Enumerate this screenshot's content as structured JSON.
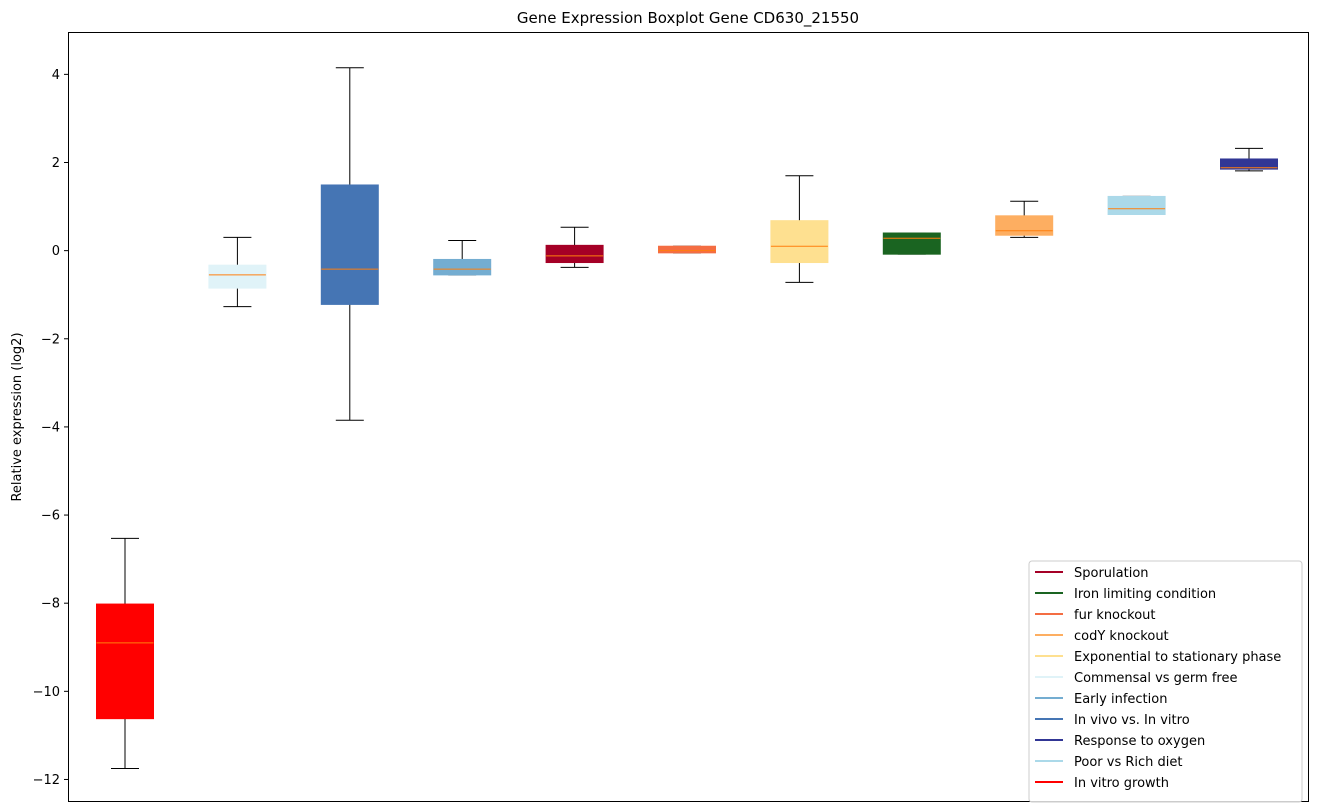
{
  "chart_data": {
    "type": "boxplot",
    "title": "Gene Expression Boxplot Gene CD630_21550",
    "xlabel": "",
    "ylabel": "Relative expression (log2)",
    "ylim": [
      -12.5,
      4.95
    ],
    "yticks": [
      4,
      2,
      0,
      -2,
      -4,
      -6,
      -8,
      -10,
      -12
    ],
    "ytick_labels": [
      "4",
      "2",
      "0",
      "−2",
      "−4",
      "−6",
      "−8",
      "−10",
      "−12"
    ],
    "median_color": "#ff7f0e",
    "boxes": [
      {
        "whisker_low": -11.75,
        "q1": -10.62,
        "median": -8.9,
        "q3": -8.02,
        "whisker_high": -6.53,
        "color": "#ff0000"
      },
      {
        "whisker_low": -1.27,
        "q1": -0.85,
        "median": -0.55,
        "q3": -0.33,
        "whisker_high": 0.3,
        "color": "#e0f3f8"
      },
      {
        "whisker_low": -3.85,
        "q1": -1.22,
        "median": -0.42,
        "q3": 1.49,
        "whisker_high": 4.15,
        "color": "#4575b4"
      },
      {
        "whisker_low": -0.55,
        "q1": -0.55,
        "median": -0.42,
        "q3": -0.2,
        "whisker_high": 0.23,
        "color": "#74add1"
      },
      {
        "whisker_low": -0.38,
        "q1": -0.27,
        "median": -0.12,
        "q3": 0.12,
        "whisker_high": 0.53,
        "color": "#a50026"
      },
      {
        "whisker_low": -0.05,
        "q1": -0.05,
        "median": 0.0,
        "q3": 0.1,
        "whisker_high": 0.1,
        "color": "#f46d43"
      },
      {
        "whisker_low": -0.72,
        "q1": -0.27,
        "median": 0.1,
        "q3": 0.68,
        "whisker_high": 1.7,
        "color": "#fee090"
      },
      {
        "whisker_low": -0.08,
        "q1": -0.08,
        "median": 0.28,
        "q3": 0.4,
        "whisker_high": 0.4,
        "color": "#1a6421"
      },
      {
        "whisker_low": 0.3,
        "q1": 0.35,
        "median": 0.45,
        "q3": 0.79,
        "whisker_high": 1.12,
        "color": "#fdae61"
      },
      {
        "whisker_low": 0.82,
        "q1": 0.82,
        "median": 0.95,
        "q3": 1.23,
        "whisker_high": 1.23,
        "color": "#abd9e9"
      },
      {
        "whisker_low": 1.81,
        "q1": 1.85,
        "median": 1.88,
        "q3": 2.08,
        "whisker_high": 2.32,
        "color": "#313695"
      }
    ],
    "legend_placement": "lower-right",
    "legend": [
      {
        "label": "Sporulation",
        "color": "#a50026"
      },
      {
        "label": "Iron limiting condition",
        "color": "#1a6421"
      },
      {
        "label": "fur knockout",
        "color": "#f46d43"
      },
      {
        "label": "codY knockout",
        "color": "#fdae61"
      },
      {
        "label": "Exponential to stationary phase",
        "color": "#fee090"
      },
      {
        "label": "Commensal vs germ free",
        "color": "#e0f3f8"
      },
      {
        "label": "Early infection",
        "color": "#74add1"
      },
      {
        "label": "In vivo vs. In vitro",
        "color": "#4575b4"
      },
      {
        "label": "Response to oxygen",
        "color": "#313695"
      },
      {
        "label": "Poor vs Rich diet",
        "color": "#abd9e9"
      },
      {
        "label": "In vitro growth",
        "color": "#ff0000"
      }
    ]
  }
}
